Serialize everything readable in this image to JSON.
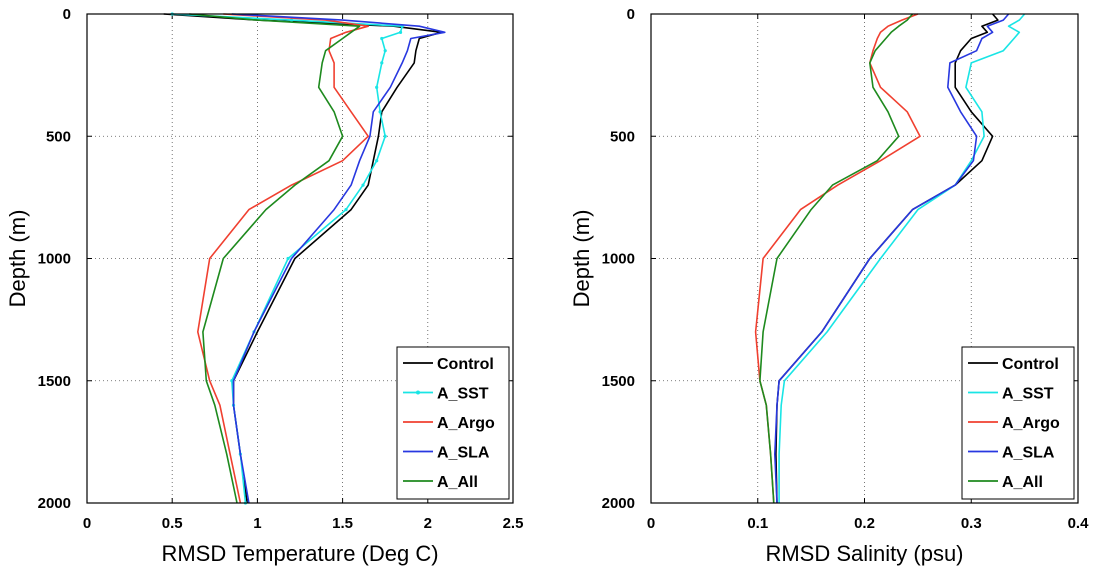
{
  "chart_data": [
    {
      "type": "line",
      "xlabel": "RMSD Temperature (Deg C)",
      "ylabel": "Depth (m)",
      "xlim": [
        0,
        2.5
      ],
      "ylim": [
        2000,
        0
      ],
      "y_reversed": true,
      "grid": true,
      "legend_position": "bottom-right",
      "xticks": [
        "0",
        "0.5",
        "1",
        "1.5",
        "2",
        "2.5"
      ],
      "yticks": [
        "0",
        "500",
        "1000",
        "1500",
        "2000"
      ],
      "series": [
        {
          "name": "Control",
          "color": "#000000",
          "marker": "none",
          "x": [
            0.45,
            1.0,
            1.8,
            2.08,
            1.95,
            1.93,
            1.92,
            1.82,
            1.73,
            1.71,
            1.68,
            1.65,
            1.55,
            1.22,
            1.0,
            0.86,
            0.86,
            0.9,
            0.94
          ],
          "y": [
            0,
            25,
            50,
            75,
            100,
            150,
            200,
            300,
            400,
            500,
            600,
            700,
            800,
            1000,
            1300,
            1500,
            1600,
            1800,
            2000
          ]
        },
        {
          "name": "A_SST",
          "color": "#19e5e5",
          "marker": "point",
          "x": [
            0.5,
            1.2,
            1.85,
            1.84,
            1.73,
            1.75,
            1.73,
            1.7,
            1.72,
            1.75,
            1.7,
            1.62,
            1.52,
            1.18,
            0.98,
            0.85,
            0.86,
            0.9,
            0.93
          ],
          "y": [
            0,
            25,
            50,
            75,
            100,
            150,
            200,
            300,
            400,
            500,
            600,
            700,
            800,
            1000,
            1300,
            1500,
            1600,
            1800,
            2000
          ]
        },
        {
          "name": "A_Argo",
          "color": "#f04030",
          "marker": "none",
          "x": [
            0.8,
            1.4,
            1.65,
            1.52,
            1.43,
            1.42,
            1.45,
            1.45,
            1.55,
            1.65,
            1.5,
            1.2,
            0.95,
            0.72,
            0.65,
            0.72,
            0.78,
            0.84,
            0.9
          ],
          "y": [
            0,
            25,
            50,
            75,
            100,
            150,
            200,
            300,
            400,
            500,
            600,
            700,
            800,
            1000,
            1300,
            1500,
            1600,
            1800,
            2000
          ]
        },
        {
          "name": "A_SLA",
          "color": "#2838e0",
          "marker": "none",
          "x": [
            0.85,
            1.5,
            1.95,
            2.1,
            1.9,
            1.88,
            1.85,
            1.78,
            1.68,
            1.66,
            1.6,
            1.55,
            1.45,
            1.2,
            0.98,
            0.86,
            0.86,
            0.9,
            0.95
          ],
          "y": [
            0,
            25,
            50,
            75,
            100,
            150,
            200,
            300,
            400,
            500,
            600,
            700,
            800,
            1000,
            1300,
            1500,
            1600,
            1800,
            2000
          ]
        },
        {
          "name": "A_All",
          "color": "#1e8a1e",
          "marker": "none",
          "x": [
            0.6,
            1.0,
            1.6,
            1.55,
            1.5,
            1.4,
            1.38,
            1.36,
            1.45,
            1.5,
            1.42,
            1.22,
            1.05,
            0.8,
            0.68,
            0.7,
            0.75,
            0.82,
            0.88
          ],
          "y": [
            0,
            25,
            50,
            75,
            100,
            150,
            200,
            300,
            400,
            500,
            600,
            700,
            800,
            1000,
            1300,
            1500,
            1600,
            1800,
            2000
          ]
        }
      ]
    },
    {
      "type": "line",
      "xlabel": "RMSD Salinity (psu)",
      "ylabel": "Depth (m)",
      "xlim": [
        0,
        0.4
      ],
      "ylim": [
        2000,
        0
      ],
      "y_reversed": true,
      "grid": true,
      "legend_position": "bottom-right",
      "xticks": [
        "0",
        "0.1",
        "0.2",
        "0.3",
        "0.4"
      ],
      "yticks": [
        "0",
        "500",
        "1000",
        "1500",
        "2000"
      ],
      "series": [
        {
          "name": "Control",
          "color": "#000000",
          "marker": "none",
          "x": [
            0.32,
            0.325,
            0.31,
            0.315,
            0.3,
            0.29,
            0.285,
            0.285,
            0.3,
            0.32,
            0.31,
            0.285,
            0.245,
            0.205,
            0.16,
            0.12,
            0.118,
            0.117,
            0.118
          ],
          "y": [
            0,
            25,
            50,
            75,
            100,
            150,
            200,
            300,
            400,
            500,
            600,
            700,
            800,
            1000,
            1300,
            1500,
            1600,
            1800,
            2000
          ]
        },
        {
          "name": "A_SST",
          "color": "#19e5e5",
          "marker": "none",
          "x": [
            0.35,
            0.345,
            0.335,
            0.345,
            0.34,
            0.33,
            0.3,
            0.295,
            0.31,
            0.312,
            0.3,
            0.285,
            0.25,
            0.215,
            0.165,
            0.125,
            0.122,
            0.12,
            0.12
          ],
          "y": [
            0,
            25,
            50,
            75,
            100,
            150,
            200,
            300,
            400,
            500,
            600,
            700,
            800,
            1000,
            1300,
            1500,
            1600,
            1800,
            2000
          ]
        },
        {
          "name": "A_Argo",
          "color": "#f04030",
          "marker": "none",
          "x": [
            0.25,
            0.235,
            0.222,
            0.215,
            0.212,
            0.208,
            0.205,
            0.215,
            0.24,
            0.252,
            0.215,
            0.175,
            0.14,
            0.105,
            0.098,
            0.102,
            0.108,
            0.112,
            0.115
          ],
          "y": [
            0,
            25,
            50,
            75,
            100,
            150,
            200,
            300,
            400,
            500,
            600,
            700,
            800,
            1000,
            1300,
            1500,
            1600,
            1800,
            2000
          ]
        },
        {
          "name": "A_SLA",
          "color": "#2838e0",
          "marker": "none",
          "x": [
            0.335,
            0.33,
            0.315,
            0.32,
            0.31,
            0.305,
            0.28,
            0.278,
            0.29,
            0.305,
            0.302,
            0.285,
            0.245,
            0.205,
            0.16,
            0.12,
            0.118,
            0.116,
            0.118
          ],
          "y": [
            0,
            25,
            50,
            75,
            100,
            150,
            200,
            300,
            400,
            500,
            600,
            700,
            800,
            1000,
            1300,
            1500,
            1600,
            1800,
            2000
          ]
        },
        {
          "name": "A_All",
          "color": "#1e8a1e",
          "marker": "none",
          "x": [
            0.245,
            0.24,
            0.232,
            0.225,
            0.22,
            0.21,
            0.205,
            0.208,
            0.222,
            0.232,
            0.212,
            0.17,
            0.15,
            0.118,
            0.105,
            0.102,
            0.108,
            0.112,
            0.115
          ],
          "y": [
            0,
            25,
            50,
            75,
            100,
            150,
            200,
            300,
            400,
            500,
            600,
            700,
            800,
            1000,
            1300,
            1500,
            1600,
            1800,
            2000
          ]
        }
      ]
    }
  ]
}
